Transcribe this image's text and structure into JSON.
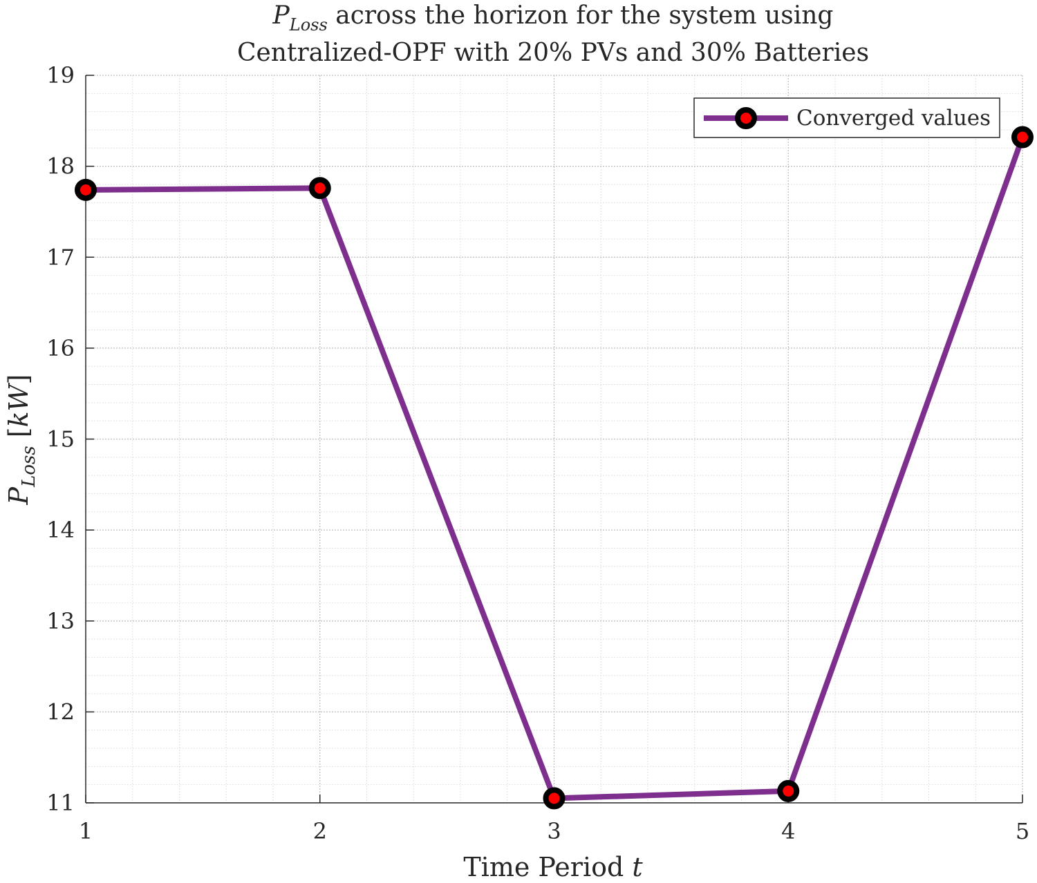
{
  "chart_data": {
    "type": "line",
    "title": {
      "symbol": "P",
      "symbol_subscript": "Loss",
      "line1_rest": " across the horizon for the system using",
      "line2": "Centralized-OPF with 20% PVs and 30% Batteries"
    },
    "xlabel": {
      "text": "Time Period ",
      "variable": "t"
    },
    "ylabel": {
      "symbol": "P",
      "symbol_subscript": "Loss",
      "unit_open": " [",
      "unit": "kW",
      "unit_close": "]"
    },
    "xlim": [
      1,
      5
    ],
    "ylim": [
      11,
      19
    ],
    "xticks": [
      1,
      2,
      3,
      4,
      5
    ],
    "yticks": [
      11,
      12,
      13,
      14,
      15,
      16,
      17,
      18,
      19
    ],
    "grid": true,
    "minor_grid": true,
    "legend_position": "top-right",
    "series": [
      {
        "name": "Converged values",
        "color": "#7E2F8E",
        "marker_edge_color": "#000000",
        "marker_face_color": "#FF0000",
        "x": [
          1,
          2,
          3,
          4,
          5
        ],
        "y": [
          17.74,
          17.76,
          11.05,
          11.13,
          18.32
        ]
      }
    ]
  }
}
